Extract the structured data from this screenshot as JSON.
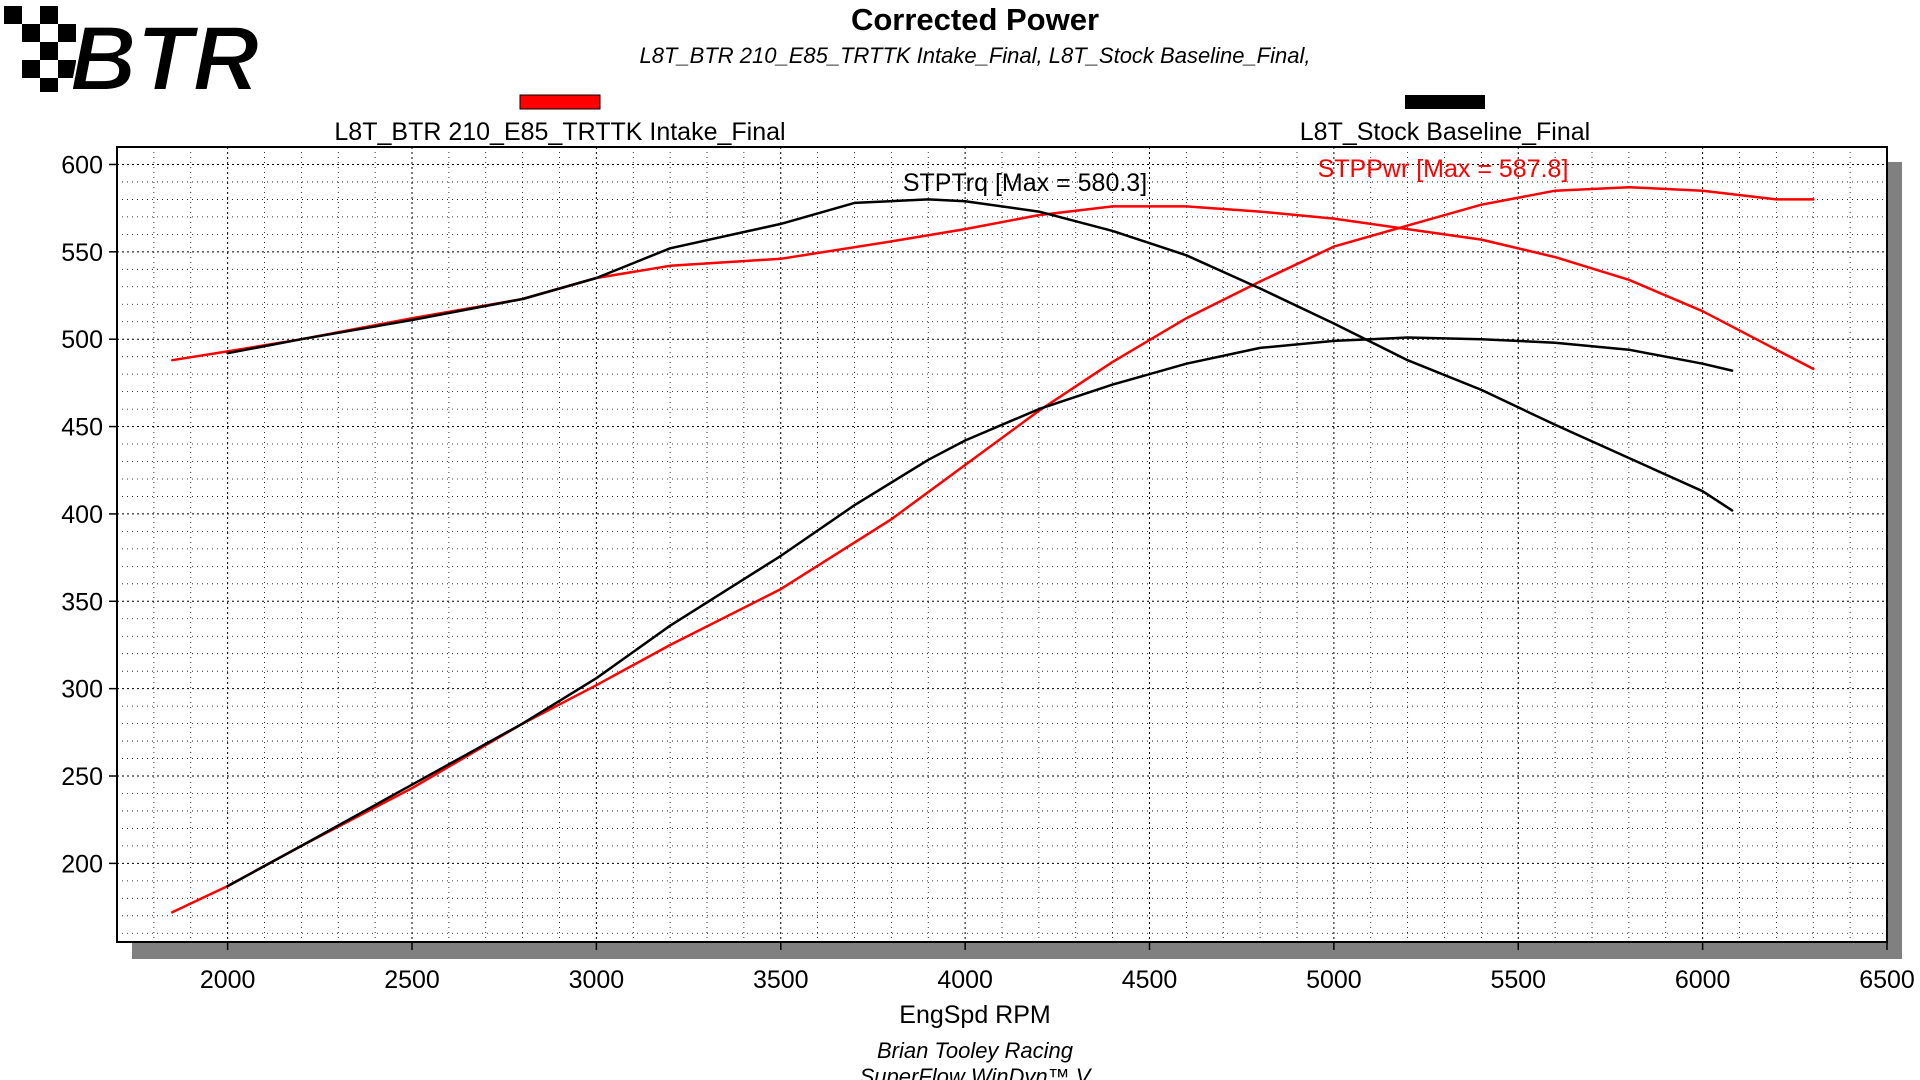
{
  "logo": {
    "text": "BTR"
  },
  "chart_data": {
    "type": "line",
    "title": "Corrected Power",
    "subtitle": "L8T_BTR 210_E85_TRTTK Intake_Final, L8T_Stock Baseline_Final,",
    "xlabel": "EngSpd RPM",
    "xlim": [
      1700,
      6500
    ],
    "ylim": [
      155,
      610
    ],
    "xticks": [
      2000,
      2500,
      3000,
      3500,
      4000,
      4500,
      5000,
      5500,
      6000,
      6500
    ],
    "yticks": [
      200,
      250,
      300,
      350,
      400,
      450,
      500,
      550,
      600
    ],
    "grid": true,
    "legend": [
      {
        "name": "L8T_BTR 210_E85_TRTTK Intake_Final",
        "color": "#ff0000"
      },
      {
        "name": "L8T_Stock Baseline_Final",
        "color": "#000000"
      }
    ],
    "annotations": [
      {
        "text": "STPTrq [Max = 580.3]",
        "color": "#000000"
      },
      {
        "text": "STPPwr [Max = 587.8]",
        "color": "#ff0000"
      }
    ],
    "series": [
      {
        "name": "L8T_BTR 210_E85_TRTTK Intake_Final STPTrq",
        "color": "#ff0000",
        "x": [
          1850,
          2000,
          2200,
          2500,
          2800,
          3000,
          3200,
          3500,
          3800,
          4000,
          4200,
          4400,
          4600,
          4800,
          5000,
          5200,
          5400,
          5600,
          5800,
          6000,
          6200,
          6300
        ],
        "y": [
          488,
          493,
          500,
          512,
          523,
          535,
          542,
          546,
          556,
          563,
          571,
          576,
          576,
          573,
          569,
          563,
          557,
          547,
          534,
          516,
          494,
          483
        ]
      },
      {
        "name": "L8T_BTR 210_E85_TRTTK Intake_Final STPPwr",
        "color": "#ff0000",
        "x": [
          1850,
          2000,
          2200,
          2500,
          2800,
          3000,
          3200,
          3500,
          3800,
          4000,
          4200,
          4400,
          4600,
          4800,
          5000,
          5200,
          5400,
          5600,
          5800,
          6000,
          6200,
          6300
        ],
        "y": [
          172,
          187,
          210,
          243,
          280,
          302,
          325,
          357,
          397,
          428,
          459,
          487,
          512,
          533,
          553,
          565,
          577,
          585,
          587,
          585,
          580,
          580
        ]
      },
      {
        "name": "L8T_Stock Baseline_Final STPTrq",
        "color": "#000000",
        "x": [
          2000,
          2200,
          2500,
          2800,
          3000,
          3200,
          3500,
          3700,
          3900,
          4000,
          4200,
          4400,
          4600,
          4800,
          5000,
          5200,
          5400,
          5600,
          5800,
          6000,
          6080
        ],
        "y": [
          492,
          500,
          511,
          523,
          535,
          552,
          566,
          578,
          580,
          579,
          573,
          562,
          548,
          529,
          509,
          488,
          471,
          451,
          432,
          413,
          402
        ]
      },
      {
        "name": "L8T_Stock Baseline_Final STPPwr",
        "color": "#000000",
        "x": [
          2000,
          2200,
          2500,
          2800,
          3000,
          3200,
          3500,
          3700,
          3900,
          4000,
          4200,
          4400,
          4600,
          4800,
          5000,
          5200,
          5400,
          5600,
          5800,
          6000,
          6080
        ],
        "y": [
          187,
          210,
          245,
          280,
          306,
          336,
          376,
          405,
          431,
          442,
          460,
          474,
          486,
          495,
          499,
          501,
          500,
          498,
          494,
          486,
          482
        ]
      }
    ]
  },
  "footer": {
    "line1": "Brian Tooley Racing",
    "line2": "SuperFlow WinDyn™ V"
  }
}
